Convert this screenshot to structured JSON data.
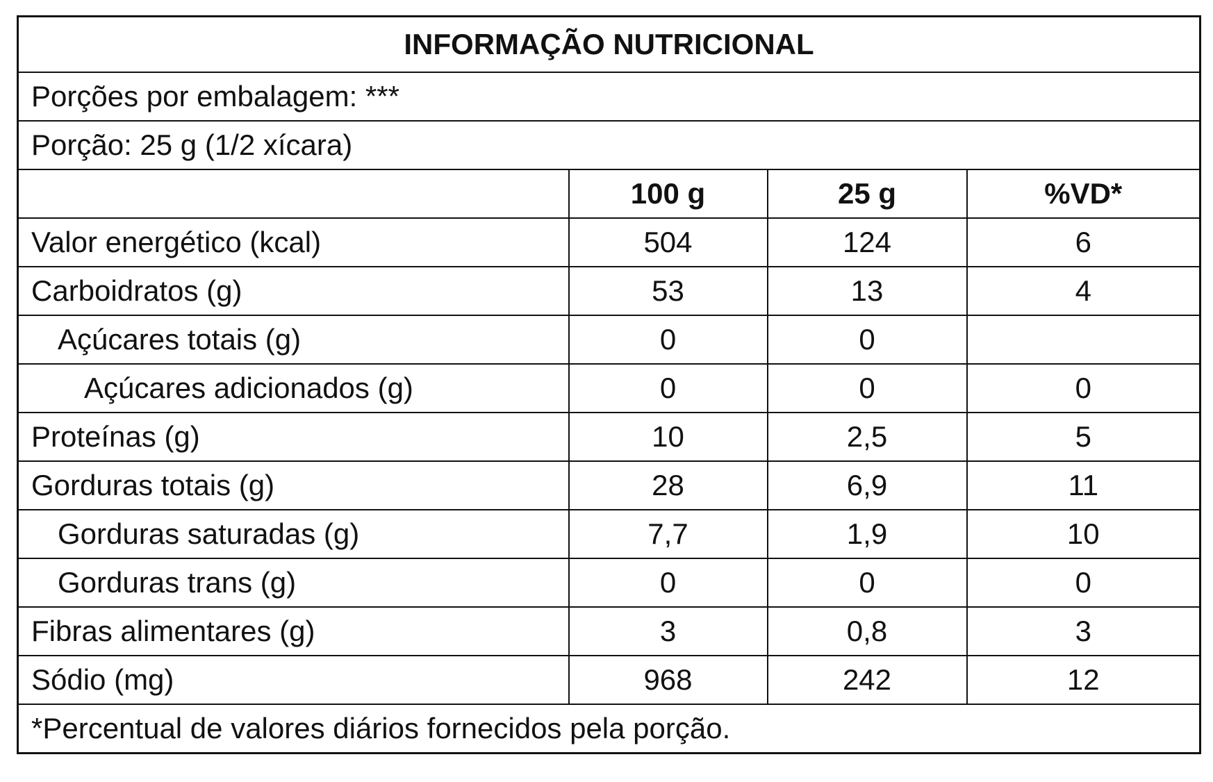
{
  "header": {
    "title": "INFORMAÇÃO NUTRICIONAL",
    "servings": "Porções por embalagem: ***",
    "portion": "Porção: 25 g (1/2 xícara)"
  },
  "table": {
    "columns": [
      "100 g",
      "25 g",
      "%VD*"
    ],
    "rows": [
      [
        "Valor energético (kcal)",
        "504",
        "124",
        "6"
      ],
      [
        "Carboidratos (g)",
        "53",
        "13",
        "4"
      ],
      [
        "Açúcares totais (g)",
        "0",
        "0",
        null
      ],
      [
        "Açúcares adicionados (g)",
        "0",
        "0",
        "0"
      ],
      [
        "Proteínas (g)",
        "10",
        "2,5",
        "5"
      ],
      [
        "Gorduras totais (g)",
        "28",
        "6,9",
        "11"
      ],
      [
        "Gorduras saturadas (g)",
        "7,7",
        "1,9",
        "10"
      ],
      [
        "Gorduras trans (g)",
        "0",
        "0",
        "0"
      ],
      [
        "Fibras alimentares (g)",
        "3",
        "0,8",
        "3"
      ],
      [
        "Sódio (mg)",
        "968",
        "242",
        "12"
      ]
    ]
  },
  "footer": "*Percentual de valores diários fornecidos pela porção."
}
